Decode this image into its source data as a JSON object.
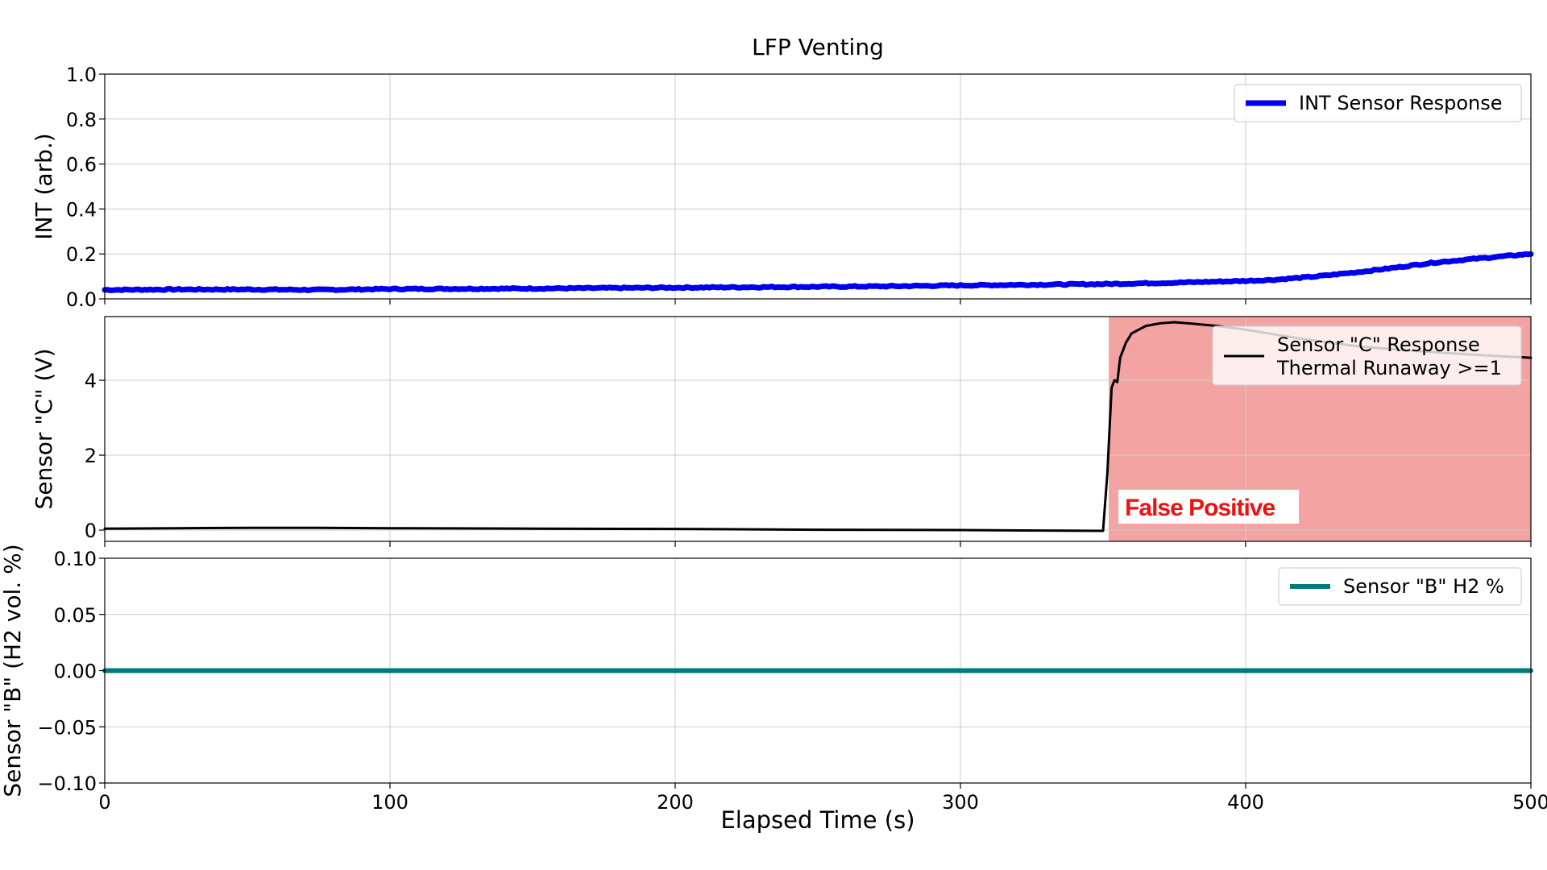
{
  "figure": {
    "title": "LFP Venting",
    "xlabel": "Elapsed Time (s)"
  },
  "colors": {
    "int": "#0000ee",
    "sensor_c": "#000000",
    "sensor_b": "#007b7b",
    "shade": "#f4a3a3",
    "false_positive_text": "#ee1111",
    "grid": "#cccccc",
    "axes": "#000000"
  },
  "annotation": {
    "text": "False Positive",
    "x": 352
  },
  "chart_data": [
    {
      "type": "line",
      "title": "LFP Venting",
      "xlabel": "",
      "ylabel": "INT (arb.)",
      "xlim": [
        0,
        500
      ],
      "ylim": [
        0.0,
        1.0
      ],
      "xticks": [
        0,
        100,
        200,
        300,
        400,
        500
      ],
      "yticks": [
        "0.0",
        "0.2",
        "0.4",
        "0.6",
        "0.8",
        "1.0"
      ],
      "grid": true,
      "legend_position": "upper-right",
      "series": [
        {
          "name": "INT Sensor Response",
          "x": [
            0,
            25,
            50,
            75,
            100,
            125,
            150,
            175,
            200,
            225,
            250,
            275,
            300,
            325,
            350,
            375,
            400,
            410,
            425,
            440,
            450,
            465,
            480,
            500
          ],
          "y": [
            0.04,
            0.042,
            0.042,
            0.04,
            0.044,
            0.045,
            0.046,
            0.048,
            0.05,
            0.052,
            0.054,
            0.056,
            0.06,
            0.063,
            0.066,
            0.072,
            0.08,
            0.085,
            0.1,
            0.12,
            0.135,
            0.16,
            0.178,
            0.2
          ]
        }
      ]
    },
    {
      "type": "line",
      "xlabel": "",
      "ylabel": "Sensor \"C\" (V)",
      "xlim": [
        0,
        500
      ],
      "ylim": [
        -0.3,
        5.7
      ],
      "xticks": [
        0,
        100,
        200,
        300,
        400,
        500
      ],
      "yticks": [
        "0",
        "2",
        "4"
      ],
      "grid": true,
      "legend_position": "upper-right",
      "legend": [
        "Sensor \"C\" Response",
        "Thermal Runaway >=1"
      ],
      "shaded_region": {
        "x": [
          352,
          500
        ],
        "label": "Thermal Runaway >=1"
      },
      "series": [
        {
          "name": "Sensor \"C\" Response",
          "x": [
            0,
            25,
            50,
            75,
            100,
            150,
            200,
            250,
            300,
            350,
            351.5,
            353,
            354,
            355,
            356,
            358,
            360,
            365,
            370,
            375,
            380,
            390,
            400,
            420,
            440,
            460,
            480,
            500
          ],
          "y": [
            0.04,
            0.05,
            0.06,
            0.06,
            0.05,
            0.04,
            0.03,
            0.01,
            0.0,
            -0.02,
            1.5,
            3.8,
            4.0,
            3.95,
            4.6,
            5.0,
            5.25,
            5.45,
            5.52,
            5.55,
            5.52,
            5.45,
            5.35,
            5.1,
            4.9,
            4.78,
            4.68,
            4.6
          ]
        }
      ]
    },
    {
      "type": "line",
      "xlabel": "Elapsed Time (s)",
      "ylabel": "Sensor \"B\" (H2 vol. %)",
      "xlim": [
        0,
        500
      ],
      "ylim": [
        -0.1,
        0.1
      ],
      "xticks": [
        "0",
        "100",
        "200",
        "300",
        "400",
        "500"
      ],
      "yticks": [
        "−0.10",
        "−0.05",
        "0.00",
        "0.05",
        "0.10"
      ],
      "grid": true,
      "legend_position": "upper-right",
      "series": [
        {
          "name": "Sensor \"B\" H2 %",
          "x": [
            0,
            500
          ],
          "y": [
            0.0,
            0.0
          ]
        }
      ]
    }
  ]
}
